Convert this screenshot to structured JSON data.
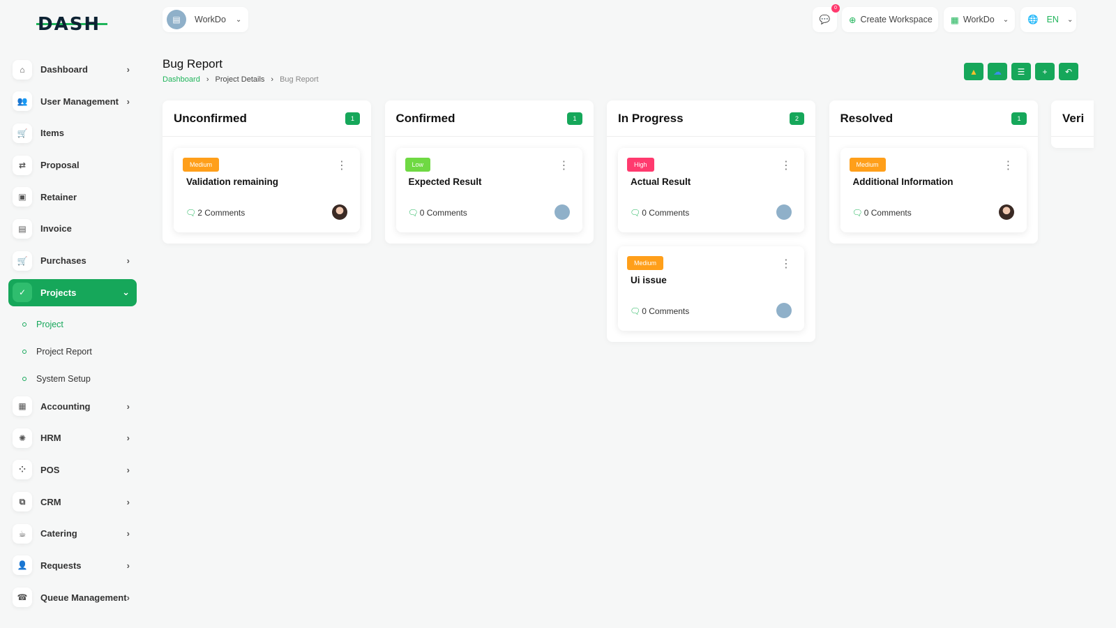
{
  "logo": "DASH",
  "sidebar": {
    "items": [
      {
        "label": "Dashboard",
        "icon": "⌂",
        "chev": true
      },
      {
        "label": "User Management",
        "icon": "👥",
        "chev": true
      },
      {
        "label": "Items",
        "icon": "🛒",
        "chev": false
      },
      {
        "label": "Proposal",
        "icon": "⇄",
        "chev": false
      },
      {
        "label": "Retainer",
        "icon": "▣",
        "chev": false
      },
      {
        "label": "Invoice",
        "icon": "▤",
        "chev": false
      },
      {
        "label": "Purchases",
        "icon": "🛒",
        "chev": true
      }
    ],
    "active": {
      "label": "Projects",
      "icon": "✓"
    },
    "sub": [
      "Project",
      "Project Report",
      "System Setup"
    ],
    "items2": [
      {
        "label": "Accounting",
        "icon": "▦"
      },
      {
        "label": "HRM",
        "icon": "✺"
      },
      {
        "label": "POS",
        "icon": "⁘"
      },
      {
        "label": "CRM",
        "icon": "⧉"
      },
      {
        "label": "Catering",
        "icon": "☕"
      },
      {
        "label": "Requests",
        "icon": "👤"
      },
      {
        "label": "Queue Management",
        "icon": "☎"
      }
    ]
  },
  "header": {
    "workspace": "WorkDo",
    "notifications": "0",
    "create_workspace": "Create Workspace",
    "workspace2": "WorkDo",
    "language": "EN"
  },
  "page": {
    "title": "Bug Report",
    "breadcrumb": [
      "Dashboard",
      "Project Details",
      "Bug Report"
    ]
  },
  "colors": {
    "accent": "#16a75a",
    "medium": "#ff9f1a",
    "low": "#6fd943",
    "high": "#ff3a6e"
  },
  "columns": [
    {
      "title": "Unconfirmed",
      "count": "1",
      "cards": [
        {
          "priority": "Medium",
          "title": "Validation remaining",
          "comments": "2 Comments",
          "avatar": "photo"
        }
      ]
    },
    {
      "title": "Confirmed",
      "count": "1",
      "cards": [
        {
          "priority": "Low",
          "title": "Expected Result",
          "comments": "0 Comments",
          "avatar": "workspace"
        }
      ]
    },
    {
      "title": "In Progress",
      "count": "2",
      "cards": [
        {
          "priority": "High",
          "title": "Actual Result",
          "comments": "0 Comments",
          "avatar": "workspace"
        },
        {
          "priority": "Medium",
          "title": "Ui issue",
          "comments": "0 Comments",
          "avatar": "workspace"
        }
      ]
    },
    {
      "title": "Resolved",
      "count": "1",
      "cards": [
        {
          "priority": "Medium",
          "title": "Additional Information",
          "comments": "0 Comments",
          "avatar": "photo"
        }
      ]
    },
    {
      "title": "Veri",
      "count": "",
      "cards": []
    }
  ]
}
